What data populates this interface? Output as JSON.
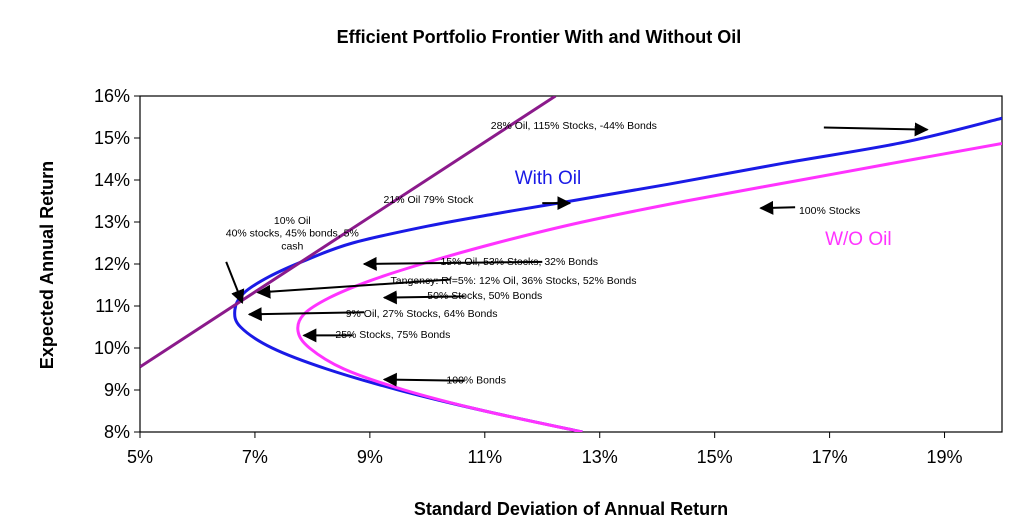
{
  "chart_data": {
    "type": "line",
    "title": "Efficient Portfolio Frontier With and Without Oil",
    "xlabel": "Standard Deviation of Annual Return",
    "ylabel": "Expected Annual Return",
    "xlim": [
      0.05,
      0.2
    ],
    "ylim": [
      0.08,
      0.16
    ],
    "x_ticks": [
      "5%",
      "7%",
      "9%",
      "11%",
      "13%",
      "15%",
      "17%",
      "19%"
    ],
    "y_ticks": [
      "8%",
      "9%",
      "10%",
      "11%",
      "12%",
      "13%",
      "14%",
      "15%",
      "16%"
    ],
    "grid": false,
    "series": [
      {
        "name": "With Oil",
        "color": "#1a1ae6",
        "points": [
          [
            0.127,
            0.08
          ],
          [
            0.11,
            0.085
          ],
          [
            0.095,
            0.09
          ],
          [
            0.0825,
            0.095
          ],
          [
            0.073,
            0.1
          ],
          [
            0.0675,
            0.105
          ],
          [
            0.0665,
            0.109
          ],
          [
            0.068,
            0.113
          ],
          [
            0.0725,
            0.117
          ],
          [
            0.079,
            0.121
          ],
          [
            0.087,
            0.125
          ],
          [
            0.1,
            0.129
          ],
          [
            0.112,
            0.132
          ],
          [
            0.125,
            0.135
          ],
          [
            0.142,
            0.139
          ],
          [
            0.162,
            0.144
          ],
          [
            0.183,
            0.149
          ],
          [
            0.2,
            0.1547
          ]
        ]
      },
      {
        "name": "W/O Oil",
        "color": "#ff33ff",
        "points": [
          [
            0.127,
            0.08
          ],
          [
            0.11,
            0.085
          ],
          [
            0.096,
            0.09
          ],
          [
            0.0855,
            0.095
          ],
          [
            0.0795,
            0.1
          ],
          [
            0.0775,
            0.104
          ],
          [
            0.0785,
            0.108
          ],
          [
            0.083,
            0.112
          ],
          [
            0.09,
            0.116
          ],
          [
            0.099,
            0.12
          ],
          [
            0.112,
            0.125
          ],
          [
            0.127,
            0.13
          ],
          [
            0.145,
            0.135
          ],
          [
            0.165,
            0.14
          ],
          [
            0.185,
            0.145
          ],
          [
            0.2,
            0.1487
          ]
        ]
      },
      {
        "name": "",
        "color": "#8b1a8b",
        "points": [
          [
            0.05,
            0.0955
          ],
          [
            0.1223,
            0.16
          ]
        ]
      }
    ],
    "series_labels": [
      {
        "text": "With Oil",
        "x": 0.121,
        "y": 0.139,
        "color": "#1a1ae6"
      },
      {
        "text": "W/O Oil",
        "x": 0.175,
        "y": 0.1245,
        "color": "#ff33ff"
      }
    ],
    "annotations": [
      {
        "text": "28% Oil, 115% Stocks, -44% Bonds",
        "x": 0.1255,
        "y": 0.1522,
        "arrow_from": [
          0.169,
          0.1525
        ],
        "arrow_to": [
          0.187,
          0.152
        ]
      },
      {
        "text": "21% Oil 79% Stock",
        "x": 0.1002,
        "y": 0.1345,
        "arrow_from": [
          0.12,
          0.1345
        ],
        "arrow_to": [
          0.1248,
          0.1345
        ]
      },
      {
        "text": "100% Stocks",
        "x": 0.17,
        "y": 0.1319,
        "arrow_from": [
          0.164,
          0.1335
        ],
        "arrow_to": [
          0.158,
          0.1333
        ]
      },
      {
        "text": "10% Oil",
        "x": 0.0765,
        "y": 0.1295,
        "arrow_from": null,
        "arrow_to": null
      },
      {
        "text": "40% stocks, 45% bonds, 5%",
        "x": 0.0765,
        "y": 0.1265,
        "arrow_from": null,
        "arrow_to": null
      },
      {
        "text": "cash",
        "x": 0.0765,
        "y": 0.1234,
        "arrow_from": [
          0.065,
          0.1205
        ],
        "arrow_to": [
          0.0678,
          0.1108
        ]
      },
      {
        "text": "15% Oil, 53% Stocks, 32% Bonds",
        "x": 0.116,
        "y": 0.1198,
        "arrow_from": [
          0.12,
          0.1205
        ],
        "arrow_to": [
          0.089,
          0.12
        ]
      },
      {
        "text": "Tangency: Rf=5%: 12% Oil, 36% Stocks, 52% Bonds",
        "x": 0.115,
        "y": 0.1152,
        "arrow_from": [
          0.104,
          0.1163
        ],
        "arrow_to": [
          0.0705,
          0.1132
        ]
      },
      {
        "text": "50% Stocks, 50% Bonds",
        "x": 0.11,
        "y": 0.1117,
        "arrow_from": [
          0.1065,
          0.1123
        ],
        "arrow_to": [
          0.0925,
          0.112
        ]
      },
      {
        "text": "9% Oil, 27% Stocks, 64% Bonds",
        "x": 0.099,
        "y": 0.1074,
        "arrow_from": [
          0.089,
          0.1085
        ],
        "arrow_to": [
          0.069,
          0.108
        ]
      },
      {
        "text": "25% Stocks, 75% Bonds",
        "x": 0.094,
        "y": 0.1024,
        "arrow_from": [
          0.087,
          0.103
        ],
        "arrow_to": [
          0.0785,
          0.103
        ]
      },
      {
        "text": "100% Bonds",
        "x": 0.1085,
        "y": 0.0915,
        "arrow_from": [
          0.1065,
          0.0922
        ],
        "arrow_to": [
          0.0925,
          0.0925
        ]
      }
    ]
  }
}
